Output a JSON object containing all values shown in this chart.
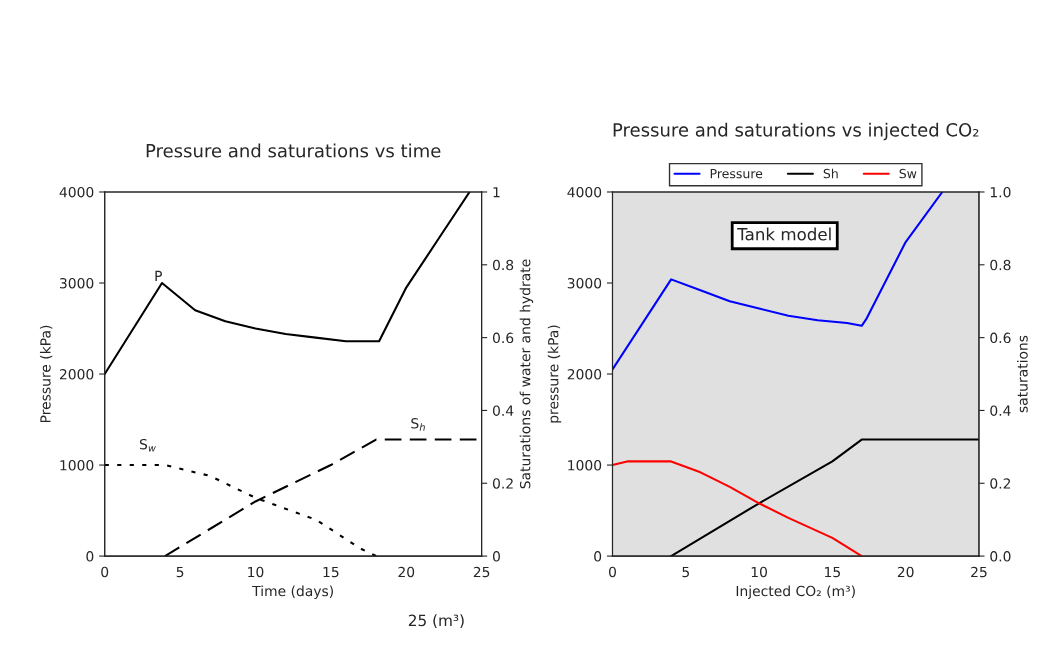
{
  "chart_data": [
    {
      "type": "line",
      "title": "Pressure and saturations vs time",
      "xlabel": "Time (days)",
      "ylabel": "Pressure (kPa)",
      "y2label": "Saturations of water and hydrate",
      "xlim": [
        0,
        25
      ],
      "xticks": [
        0,
        5,
        10,
        15,
        20,
        25
      ],
      "ylim": [
        0,
        4000
      ],
      "yticks": [
        0,
        1000,
        2000,
        3000,
        4000
      ],
      "y2lim": [
        0,
        1
      ],
      "y2ticks": [
        0,
        0.2,
        0.4,
        0.6,
        0.8,
        1
      ],
      "grid": false,
      "legend": false,
      "series": [
        {
          "color": "#000000",
          "line_style": "solid",
          "x": [
            0,
            3.8,
            6,
            8,
            10,
            12,
            14,
            16,
            18.2,
            20,
            22,
            24.2
          ],
          "values": [
            2000,
            3000,
            2700,
            2580,
            2500,
            2440,
            2400,
            2360,
            2360,
            2950,
            3450,
            4000
          ]
        },
        {
          "color": "#000000",
          "line_style": "dotted",
          "axis": "y2",
          "x": [
            0,
            4,
            7,
            10,
            14,
            17,
            18
          ],
          "values": [
            0.25,
            0.25,
            0.22,
            0.16,
            0.1,
            0.02,
            0
          ]
        },
        {
          "color": "#000000",
          "line_style": "dashed",
          "axis": "y2",
          "x": [
            4,
            10,
            15,
            18,
            25
          ],
          "values": [
            0,
            0.15,
            0.25,
            0.32,
            0.32
          ]
        }
      ],
      "annotations": [
        {
          "text": "P",
          "x": 3,
          "y": 2900
        },
        {
          "text": "S$_{w}$",
          "x": 2,
          "y": 1050
        },
        {
          "text": "S$_{h}$",
          "x": 20,
          "y": 1280
        },
        "25 (m³)"
      ]
    },
    {
      "type": "line",
      "title": "Pressure and saturations vs injected CO₂",
      "xlabel": "Injected CO₂ (m³)",
      "ylabel": "pressure (kPa)",
      "y2label": "saturations",
      "xlim": [
        0,
        25
      ],
      "xticks": [
        0,
        5,
        10,
        15,
        20,
        25
      ],
      "ylim": [
        0,
        4000
      ],
      "yticks": [
        0,
        1000,
        2000,
        3000,
        4000
      ],
      "y2lim": [
        0,
        1
      ],
      "y2ticks": [
        {
          "value": 0,
          "label": "0.0"
        },
        {
          "value": 0.2,
          "label": "0.2"
        },
        {
          "value": 0.4,
          "label": "0.4"
        },
        {
          "value": 0.6,
          "label": "0.6"
        },
        {
          "value": 0.8,
          "label": "0.8"
        },
        {
          "value": 1,
          "label": "1.0"
        }
      ],
      "grid": false,
      "legend": "top",
      "series": [
        {
          "name": "Pressure",
          "color": "#0000ff",
          "line_style": "solid",
          "x": [
            0,
            4,
            6,
            8,
            10,
            12,
            14,
            16,
            17,
            17.3,
            20,
            22.5
          ],
          "values": [
            2050,
            3040,
            2920,
            2800,
            2720,
            2640,
            2590,
            2560,
            2530,
            2600,
            3450,
            4000
          ]
        },
        {
          "name": "Sh",
          "color": "#000000",
          "line_style": "solid",
          "axis": "y2",
          "x": [
            4,
            10,
            15,
            17,
            25
          ],
          "values": [
            0,
            0.145,
            0.26,
            0.32,
            0.32
          ]
        },
        {
          "name": "Sw",
          "color": "#ff0000",
          "line_style": "solid",
          "axis": "y2",
          "x": [
            0,
            1,
            4,
            6,
            8,
            10,
            12,
            15,
            17
          ],
          "values": [
            0.25,
            0.26,
            0.26,
            0.23,
            0.19,
            0.145,
            0.105,
            0.05,
            0
          ]
        }
      ],
      "annotations": [
        "Tank model"
      ]
    }
  ]
}
